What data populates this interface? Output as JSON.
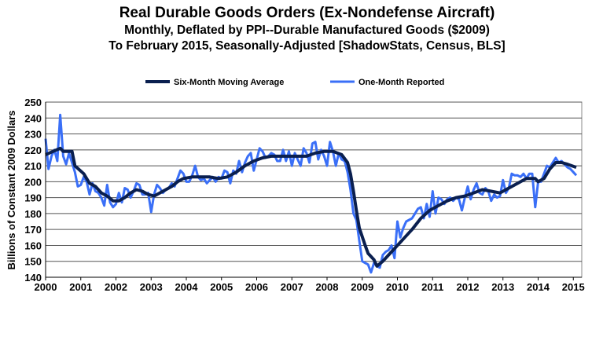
{
  "chart_data": {
    "type": "line",
    "title": "Real Durable Goods Orders (Ex-Nondefense Aircraft)",
    "subtitle": [
      "Monthly, Deflated by PPI--Durable Manufactured Goods ($2009)",
      "To February 2015, Seasonally-Adjusted [ShadowStats, Census, BLS]"
    ],
    "xlabel": "",
    "ylabel": "Billions  of Constant 2009 Dollars",
    "xlim": [
      2000,
      2015.2
    ],
    "ylim": [
      140,
      250
    ],
    "x_ticks": [
      "2000",
      "2001",
      "2002",
      "2003",
      "2004",
      "2005",
      "2006",
      "2007",
      "2008",
      "2009",
      "2010",
      "2011",
      "2012",
      "2013",
      "2014",
      "2015"
    ],
    "y_ticks": [
      140,
      150,
      160,
      170,
      180,
      190,
      200,
      210,
      220,
      230,
      240,
      250
    ],
    "grid": "horizontal",
    "legend": "top",
    "series": [
      {
        "name": "Six-Month Moving Average",
        "color": "#0a1f4f",
        "points": [
          [
            "2000-01",
            217
          ],
          [
            "2000-06",
            221
          ],
          [
            "2000-07",
            219
          ],
          [
            "2000-10",
            219
          ],
          [
            "2000-11",
            210
          ],
          [
            "2001-02",
            205
          ],
          [
            "2001-04",
            199
          ],
          [
            "2001-06",
            197
          ],
          [
            "2001-08",
            193
          ],
          [
            "2001-10",
            191
          ],
          [
            "2001-12",
            188
          ],
          [
            "2002-02",
            188
          ],
          [
            "2002-04",
            190
          ],
          [
            "2002-06",
            193
          ],
          [
            "2002-08",
            195
          ],
          [
            "2002-10",
            194
          ],
          [
            "2002-12",
            192
          ],
          [
            "2003-02",
            191
          ],
          [
            "2003-04",
            193
          ],
          [
            "2003-06",
            195
          ],
          [
            "2003-08",
            197
          ],
          [
            "2003-10",
            200
          ],
          [
            "2003-12",
            202
          ],
          [
            "2004-03",
            203
          ],
          [
            "2004-06",
            203
          ],
          [
            "2004-09",
            203
          ],
          [
            "2004-12",
            202
          ],
          [
            "2005-03",
            203
          ],
          [
            "2005-06",
            206
          ],
          [
            "2005-09",
            210
          ],
          [
            "2005-12",
            213
          ],
          [
            "2006-03",
            215
          ],
          [
            "2006-06",
            216
          ],
          [
            "2006-09",
            216
          ],
          [
            "2006-12",
            216
          ],
          [
            "2007-03",
            216
          ],
          [
            "2007-06",
            216
          ],
          [
            "2007-09",
            218
          ],
          [
            "2007-12",
            219
          ],
          [
            "2008-03",
            219
          ],
          [
            "2008-06",
            217
          ],
          [
            "2008-08",
            212
          ],
          [
            "2008-09",
            205
          ],
          [
            "2008-10",
            194
          ],
          [
            "2008-11",
            182
          ],
          [
            "2008-12",
            171
          ],
          [
            "2009-02",
            160
          ],
          [
            "2009-03",
            155
          ],
          [
            "2009-05",
            151
          ],
          [
            "2009-06",
            147
          ],
          [
            "2009-08",
            150
          ],
          [
            "2009-10",
            154
          ],
          [
            "2009-12",
            158
          ],
          [
            "2010-03",
            164
          ],
          [
            "2010-06",
            170
          ],
          [
            "2010-09",
            177
          ],
          [
            "2010-12",
            182
          ],
          [
            "2011-03",
            185
          ],
          [
            "2011-06",
            188
          ],
          [
            "2011-09",
            190
          ],
          [
            "2011-12",
            191
          ],
          [
            "2012-03",
            193
          ],
          [
            "2012-06",
            195
          ],
          [
            "2012-09",
            194
          ],
          [
            "2012-12",
            193
          ],
          [
            "2013-03",
            196
          ],
          [
            "2013-06",
            199
          ],
          [
            "2013-09",
            202
          ],
          [
            "2013-12",
            202
          ],
          [
            "2014-01",
            200
          ],
          [
            "2014-03",
            202
          ],
          [
            "2014-05",
            208
          ],
          [
            "2014-07",
            212
          ],
          [
            "2014-09",
            212
          ],
          [
            "2014-11",
            211
          ],
          [
            "2015-02",
            209
          ]
        ]
      },
      {
        "name": "One-Month Reported",
        "color": "#3a6ff7",
        "points": [
          [
            "2000-01",
            227
          ],
          [
            "2000-02",
            208
          ],
          [
            "2000-03",
            216
          ],
          [
            "2000-04",
            220
          ],
          [
            "2000-05",
            213
          ],
          [
            "2000-06",
            242
          ],
          [
            "2000-07",
            216
          ],
          [
            "2000-08",
            211
          ],
          [
            "2000-09",
            218
          ],
          [
            "2000-10",
            212
          ],
          [
            "2000-11",
            206
          ],
          [
            "2000-12",
            197
          ],
          [
            "2001-01",
            198
          ],
          [
            "2001-02",
            203
          ],
          [
            "2001-03",
            200
          ],
          [
            "2001-04",
            192
          ],
          [
            "2001-05",
            199
          ],
          [
            "2001-06",
            194
          ],
          [
            "2001-07",
            193
          ],
          [
            "2001-08",
            190
          ],
          [
            "2001-09",
            185
          ],
          [
            "2001-10",
            198
          ],
          [
            "2001-11",
            187
          ],
          [
            "2001-12",
            184
          ],
          [
            "2002-01",
            186
          ],
          [
            "2002-02",
            193
          ],
          [
            "2002-03",
            187
          ],
          [
            "2002-04",
            196
          ],
          [
            "2002-05",
            195
          ],
          [
            "2002-06",
            190
          ],
          [
            "2002-07",
            194
          ],
          [
            "2002-08",
            199
          ],
          [
            "2002-09",
            198
          ],
          [
            "2002-10",
            192
          ],
          [
            "2002-11",
            192
          ],
          [
            "2002-12",
            193
          ],
          [
            "2003-01",
            181
          ],
          [
            "2003-02",
            192
          ],
          [
            "2003-03",
            198
          ],
          [
            "2003-04",
            196
          ],
          [
            "2003-05",
            193
          ],
          [
            "2003-06",
            195
          ],
          [
            "2003-07",
            196
          ],
          [
            "2003-08",
            199
          ],
          [
            "2003-09",
            197
          ],
          [
            "2003-10",
            202
          ],
          [
            "2003-11",
            207
          ],
          [
            "2003-12",
            205
          ],
          [
            "2004-01",
            200
          ],
          [
            "2004-02",
            200
          ],
          [
            "2004-03",
            204
          ],
          [
            "2004-04",
            210
          ],
          [
            "2004-05",
            203
          ],
          [
            "2004-06",
            201
          ],
          [
            "2004-07",
            202
          ],
          [
            "2004-08",
            199
          ],
          [
            "2004-09",
            201
          ],
          [
            "2004-10",
            203
          ],
          [
            "2004-11",
            200
          ],
          [
            "2004-12",
            203
          ],
          [
            "2005-01",
            202
          ],
          [
            "2005-02",
            207
          ],
          [
            "2005-03",
            206
          ],
          [
            "2005-04",
            199
          ],
          [
            "2005-05",
            207
          ],
          [
            "2005-06",
            205
          ],
          [
            "2005-07",
            213
          ],
          [
            "2005-08",
            206
          ],
          [
            "2005-09",
            212
          ],
          [
            "2005-10",
            216
          ],
          [
            "2005-11",
            218
          ],
          [
            "2005-12",
            207
          ],
          [
            "2006-01",
            214
          ],
          [
            "2006-02",
            221
          ],
          [
            "2006-03",
            219
          ],
          [
            "2006-04",
            215
          ],
          [
            "2006-05",
            216
          ],
          [
            "2006-06",
            218
          ],
          [
            "2006-07",
            217
          ],
          [
            "2006-08",
            213
          ],
          [
            "2006-09",
            213
          ],
          [
            "2006-10",
            220
          ],
          [
            "2006-11",
            213
          ],
          [
            "2006-12",
            219
          ],
          [
            "2007-01",
            210
          ],
          [
            "2007-02",
            218
          ],
          [
            "2007-03",
            214
          ],
          [
            "2007-04",
            210
          ],
          [
            "2007-05",
            221
          ],
          [
            "2007-06",
            218
          ],
          [
            "2007-07",
            212
          ],
          [
            "2007-08",
            224
          ],
          [
            "2007-09",
            225
          ],
          [
            "2007-10",
            214
          ],
          [
            "2007-11",
            220
          ],
          [
            "2007-12",
            216
          ],
          [
            "2008-01",
            210
          ],
          [
            "2008-02",
            225
          ],
          [
            "2008-03",
            219
          ],
          [
            "2008-04",
            210
          ],
          [
            "2008-05",
            218
          ],
          [
            "2008-06",
            214
          ],
          [
            "2008-07",
            213
          ],
          [
            "2008-08",
            206
          ],
          [
            "2008-09",
            195
          ],
          [
            "2008-10",
            180
          ],
          [
            "2008-11",
            176
          ],
          [
            "2008-12",
            163
          ],
          [
            "2009-01",
            150
          ],
          [
            "2009-02",
            149
          ],
          [
            "2009-03",
            148
          ],
          [
            "2009-04",
            143
          ],
          [
            "2009-05",
            149
          ],
          [
            "2009-06",
            147
          ],
          [
            "2009-07",
            146
          ],
          [
            "2009-08",
            154
          ],
          [
            "2009-09",
            156
          ],
          [
            "2009-10",
            157
          ],
          [
            "2009-11",
            160
          ],
          [
            "2009-12",
            152
          ],
          [
            "2010-01",
            175
          ],
          [
            "2010-02",
            165
          ],
          [
            "2010-03",
            171
          ],
          [
            "2010-04",
            175
          ],
          [
            "2010-05",
            176
          ],
          [
            "2010-06",
            177
          ],
          [
            "2010-07",
            180
          ],
          [
            "2010-08",
            183
          ],
          [
            "2010-09",
            184
          ],
          [
            "2010-10",
            177
          ],
          [
            "2010-11",
            186
          ],
          [
            "2010-12",
            178
          ],
          [
            "2011-01",
            194
          ],
          [
            "2011-02",
            180
          ],
          [
            "2011-03",
            190
          ],
          [
            "2011-04",
            189
          ],
          [
            "2011-05",
            186
          ],
          [
            "2011-06",
            189
          ],
          [
            "2011-07",
            190
          ],
          [
            "2011-08",
            188
          ],
          [
            "2011-09",
            190
          ],
          [
            "2011-10",
            189
          ],
          [
            "2011-11",
            182
          ],
          [
            "2011-12",
            190
          ],
          [
            "2012-01",
            197
          ],
          [
            "2012-02",
            189
          ],
          [
            "2012-03",
            195
          ],
          [
            "2012-04",
            199
          ],
          [
            "2012-05",
            193
          ],
          [
            "2012-06",
            192
          ],
          [
            "2012-07",
            196
          ],
          [
            "2012-08",
            194
          ],
          [
            "2012-09",
            188
          ],
          [
            "2012-10",
            192
          ],
          [
            "2012-11",
            190
          ],
          [
            "2012-12",
            191
          ],
          [
            "2013-01",
            201
          ],
          [
            "2013-02",
            193
          ],
          [
            "2013-03",
            196
          ],
          [
            "2013-04",
            205
          ],
          [
            "2013-05",
            204
          ],
          [
            "2013-06",
            204
          ],
          [
            "2013-07",
            203
          ],
          [
            "2013-08",
            205
          ],
          [
            "2013-09",
            202
          ],
          [
            "2013-10",
            205
          ],
          [
            "2013-11",
            205
          ],
          [
            "2013-12",
            184
          ],
          [
            "2014-01",
            200
          ],
          [
            "2014-02",
            200
          ],
          [
            "2014-03",
            205
          ],
          [
            "2014-04",
            210
          ],
          [
            "2014-05",
            209
          ],
          [
            "2014-06",
            212
          ],
          [
            "2014-07",
            215
          ],
          [
            "2014-08",
            212
          ],
          [
            "2014-09",
            213
          ],
          [
            "2014-10",
            211
          ],
          [
            "2014-11",
            209
          ],
          [
            "2014-12",
            208
          ],
          [
            "2015-01",
            206
          ],
          [
            "2015-02",
            204
          ]
        ]
      }
    ]
  }
}
